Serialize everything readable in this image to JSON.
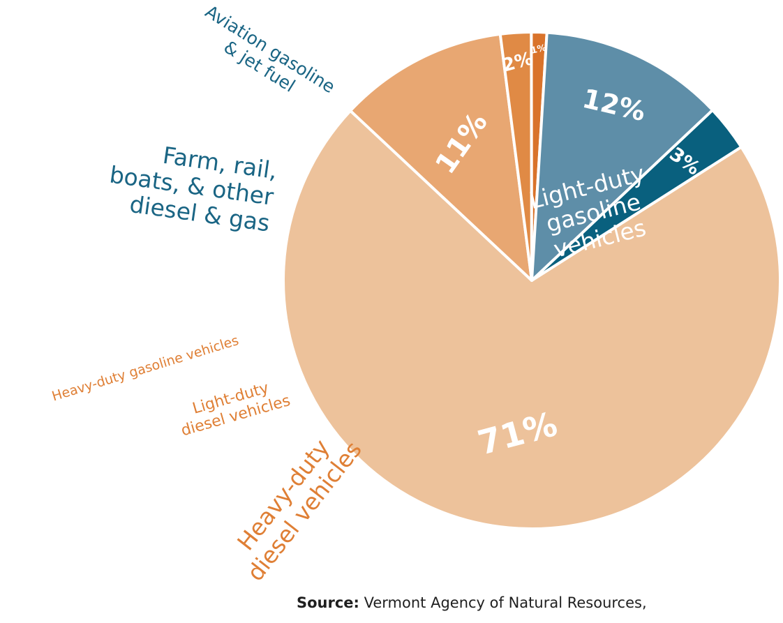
{
  "chart_data": {
    "type": "pie",
    "slices": [
      {
        "name": "Light-duty gasoline vehicles",
        "label_lines": [
          "Light-duty",
          "gasoline",
          "vehicles"
        ],
        "value": 71,
        "display": "71%",
        "color": "#edc29b",
        "label_color": "#ffffff"
      },
      {
        "name": "Heavy-duty diesel vehicles",
        "label_lines": [
          "Heavy-duty",
          "diesel vehicles"
        ],
        "value": 11,
        "display": "11%",
        "color": "#e8a772",
        "label_color": "#df7f35"
      },
      {
        "name": "Light-duty diesel vehicles",
        "label_lines": [
          "Light-duty",
          "diesel vehicles"
        ],
        "value": 2,
        "display": "2%",
        "color": "#e08a45",
        "label_color": "#df7f35"
      },
      {
        "name": "Heavy-duty gasoline vehicles",
        "label_lines": [
          "Heavy-duty gasoline vehicles"
        ],
        "value": 1,
        "display": "1%",
        "color": "#d9732b",
        "label_color": "#df7f35"
      },
      {
        "name": "Farm, rail, boats, & other diesel & gas",
        "label_lines": [
          "Farm, rail,",
          "boats, & other",
          "diesel & gas"
        ],
        "value": 12,
        "display": "12%",
        "color": "#5e8ea8",
        "label_color": "#1a6584"
      },
      {
        "name": "Aviation gasoline & jet fuel",
        "label_lines": [
          "Aviation gasoline",
          "& jet fuel"
        ],
        "value": 3,
        "display": "3%",
        "color": "#09607e",
        "label_color": "#1a6584"
      }
    ]
  },
  "source": {
    "heading": "Source:",
    "text": "Vermont Agency of Natural Resources,"
  }
}
